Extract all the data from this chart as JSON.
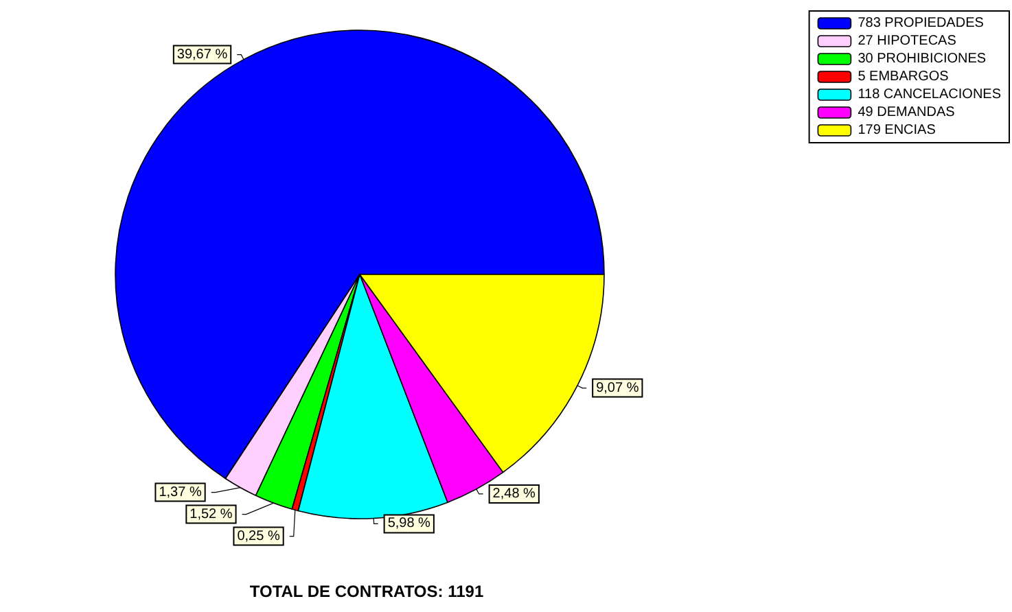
{
  "chart_data": {
    "type": "pie",
    "title": "TOTAL DE CONTRATOS: 1191",
    "categories": [
      "783 PROPIEDADES",
      "27 HIPOTECAS",
      "30 PROHIBICIONES",
      "5 EMBARGOS",
      "118 CANCELACIONES",
      "49 DEMANDAS",
      "179 ENCIAS"
    ],
    "values": [
      783,
      27,
      30,
      5,
      118,
      49,
      179
    ],
    "colors": [
      "#0000ff",
      "#ffd0ff",
      "#00ff00",
      "#ff0000",
      "#00ffff",
      "#ff00ff",
      "#ffff00"
    ],
    "annotations": [
      "39,67 %",
      "1,37 %",
      "1,52 %",
      "0,25 %",
      "5,98 %",
      "2,48 %",
      "9,07 %"
    ],
    "legend": "top right"
  }
}
